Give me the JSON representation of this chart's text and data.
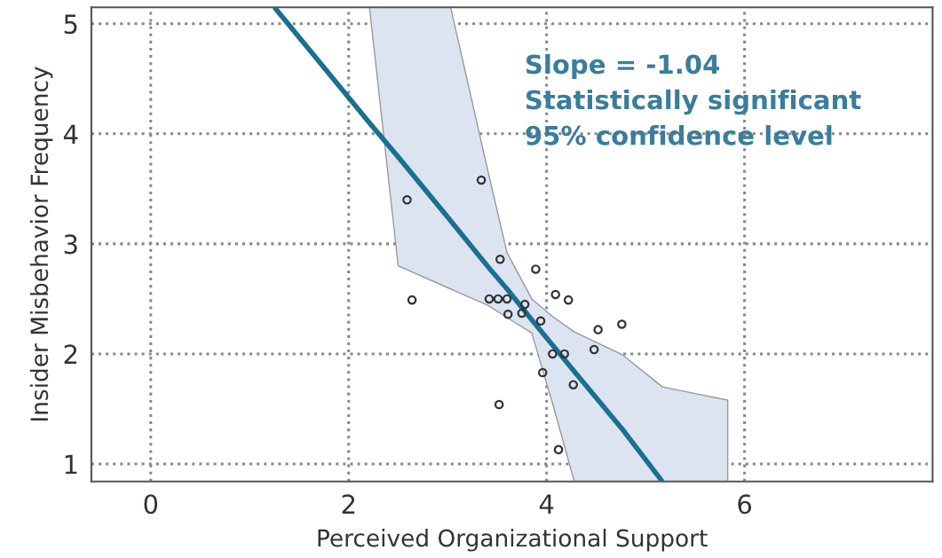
{
  "chart_data": {
    "type": "scatter",
    "xlabel": "Perceived Organizational Support",
    "ylabel": "Insider Misbehavior Frequency",
    "xlim": [
      -0.6,
      7.9
    ],
    "ylim": [
      0.84,
      5.15
    ],
    "xticks": [
      0,
      2,
      4,
      6
    ],
    "yticks": [
      1,
      2,
      3,
      4,
      5
    ],
    "grid": true,
    "annotations": [
      "Slope = -1.04",
      "Statistically significant",
      "95% confidence level"
    ],
    "series": [
      {
        "color": "#333333",
        "marker": "circle",
        "x": [
          2.59,
          3.34,
          3.53,
          3.89,
          2.64,
          3.42,
          3.51,
          3.6,
          3.78,
          3.61,
          3.75,
          4.09,
          4.22,
          3.94,
          4.52,
          4.76,
          4.06,
          4.18,
          4.48,
          3.96,
          4.27,
          3.52,
          4.12
        ],
        "values": [
          3.4,
          3.58,
          2.86,
          2.77,
          2.49,
          2.5,
          2.5,
          2.5,
          2.45,
          2.36,
          2.37,
          2.54,
          2.49,
          2.3,
          2.22,
          2.27,
          2.0,
          2.0,
          2.04,
          1.83,
          1.72,
          1.54,
          1.13
        ]
      },
      {
        "type": "line",
        "color": "#1a7090",
        "x": [
          1.25,
          2.21,
          2.5,
          3.03,
          3.41,
          3.6,
          3.85,
          4.06,
          4.28,
          4.77,
          5.17,
          5.83
        ],
        "values": [
          5.15,
          4.1,
          3.79,
          3.21,
          2.79,
          2.59,
          2.31,
          2.08,
          1.84,
          1.31,
          0.84,
          null
        ],
        "lower": [
          null,
          5.15,
          2.8,
          2.59,
          2.44,
          2.33,
          2.19,
          1.55,
          0.84,
          0.84,
          0.84,
          0.84
        ],
        "upper": [
          null,
          5.15,
          5.15,
          5.15,
          3.65,
          2.92,
          2.5,
          2.34,
          2.2,
          1.99,
          1.7,
          1.58
        ]
      }
    ]
  }
}
